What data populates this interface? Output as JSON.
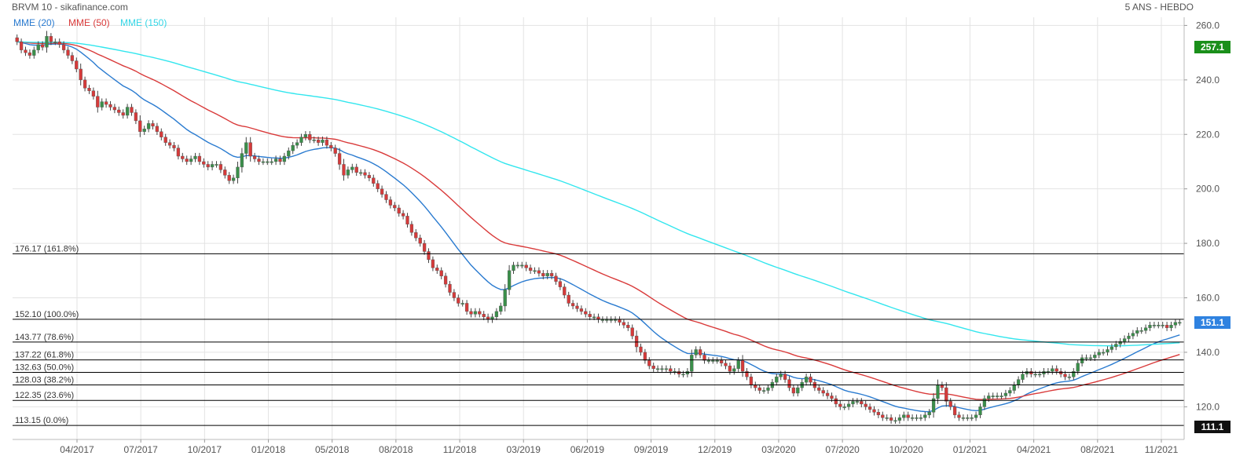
{
  "header": {
    "left_title": "BRVM 10 - sikafinance.com",
    "right_title": "5 ANS - HEBDO"
  },
  "legend": [
    {
      "label": "MME (20)",
      "color": "#2a7bd0"
    },
    {
      "label": "MME (50)",
      "color": "#d93a3a"
    },
    {
      "label": "MME (150)",
      "color": "#33e6ee"
    }
  ],
  "colors": {
    "up_candle": "#3a8f4a",
    "down_candle": "#d63a3a",
    "grid": "#e3e3e3",
    "fib_line": "#000000",
    "badge_last": "#1a8f1a",
    "badge_price": "#2f82e0",
    "badge_low": "#111111"
  },
  "badges": {
    "top": "257.1",
    "price": "151.1",
    "bottom": "111.1"
  },
  "chart_data": {
    "type": "candlestick",
    "title": "BRVM 10 - sikafinance.com",
    "period": "5 ANS - HEBDO",
    "ylim": [
      108,
      263
    ],
    "y_ticks": [
      "260.0",
      "240.0",
      "220.0",
      "200.0",
      "180.0",
      "160.0",
      "140.0",
      "120.0"
    ],
    "x_ticks": [
      "04/2017",
      "07/2017",
      "10/2017",
      "01/2018",
      "05/2018",
      "08/2018",
      "11/2018",
      "03/2019",
      "06/2019",
      "09/2019",
      "12/2019",
      "03/2020",
      "07/2020",
      "10/2020",
      "01/2021",
      "04/2021",
      "08/2021",
      "11/2021"
    ],
    "fibonacci": [
      {
        "value": 176.17,
        "label": "176.17  (161.8%)"
      },
      {
        "value": 152.1,
        "label": "152.10  (100.0%)"
      },
      {
        "value": 143.77,
        "label": "143.77  (78.6%)"
      },
      {
        "value": 137.22,
        "label": "137.22  (61.8%)"
      },
      {
        "value": 132.63,
        "label": "132.63  (50.0%)"
      },
      {
        "value": 128.03,
        "label": "128.03  (38.2%)"
      },
      {
        "value": 122.35,
        "label": "122.35  (23.6%)"
      },
      {
        "value": 113.15,
        "label": "113.15  (0.0%)"
      }
    ],
    "closes": [
      254.0,
      251.0,
      250.0,
      249.0,
      251.0,
      253.0,
      252.0,
      256.0,
      254.0,
      254.0,
      253.0,
      251.0,
      249.0,
      247.0,
      244.0,
      240.0,
      237.0,
      236.0,
      234.0,
      230.0,
      232.0,
      231.0,
      230.0,
      229.0,
      228.0,
      227.0,
      230.0,
      228.0,
      225.0,
      221.0,
      222.0,
      224.0,
      223.0,
      221.0,
      219.0,
      217.0,
      216.0,
      215.0,
      212.0,
      211.0,
      210.0,
      211.0,
      212.0,
      210.0,
      209.0,
      208.0,
      209.0,
      209.0,
      207.0,
      205.0,
      203.0,
      204.0,
      208.0,
      213.0,
      217.0,
      212.0,
      211.0,
      210.0,
      210.0,
      210.0,
      210.0,
      211.0,
      210.0,
      212.0,
      214.0,
      216.0,
      217.0,
      219.0,
      220.0,
      218.0,
      218.0,
      217.0,
      218.0,
      216.0,
      215.0,
      213.0,
      209.0,
      205.0,
      207.0,
      208.0,
      206.0,
      206.0,
      205.0,
      204.0,
      202.0,
      200.0,
      198.0,
      196.0,
      194.0,
      193.0,
      191.0,
      190.0,
      187.0,
      184.0,
      182.0,
      180.0,
      177.0,
      174.0,
      171.0,
      170.0,
      168.0,
      165.0,
      162.0,
      160.0,
      158.0,
      158.0,
      155.0,
      154.0,
      155.0,
      154.0,
      153.0,
      152.0,
      153.0,
      155.0,
      157.0,
      163.0,
      170.0,
      172.0,
      172.0,
      172.0,
      171.0,
      170.0,
      170.0,
      169.0,
      168.0,
      169.0,
      168.0,
      166.0,
      164.0,
      161.0,
      158.0,
      157.0,
      156.0,
      155.0,
      154.0,
      153.0,
      153.0,
      152.0,
      152.0,
      152.0,
      152.0,
      152.0,
      151.0,
      150.0,
      149.0,
      146.0,
      142.0,
      140.0,
      137.0,
      135.0,
      134.0,
      134.0,
      134.0,
      134.0,
      133.0,
      133.0,
      132.0,
      132.0,
      133.0,
      139.0,
      141.0,
      139.0,
      137.0,
      137.0,
      137.0,
      137.0,
      136.0,
      135.0,
      133.0,
      134.0,
      137.0,
      133.0,
      131.0,
      128.0,
      127.0,
      126.0,
      126.0,
      127.0,
      129.0,
      131.0,
      132.0,
      130.0,
      127.0,
      125.0,
      127.0,
      129.0,
      131.0,
      129.0,
      127.0,
      126.0,
      125.0,
      124.0,
      123.0,
      121.0,
      120.0,
      120.0,
      121.0,
      122.0,
      122.0,
      121.0,
      120.0,
      119.0,
      118.0,
      117.0,
      116.0,
      116.0,
      115.0,
      115.0,
      116.0,
      117.0,
      116.0,
      116.0,
      116.0,
      116.0,
      117.0,
      118.0,
      123.0,
      128.0,
      127.0,
      122.0,
      120.0,
      117.0,
      116.0,
      116.0,
      116.0,
      116.0,
      117.0,
      120.0,
      123.0,
      124.0,
      124.0,
      124.0,
      124.0,
      125.0,
      126.0,
      128.0,
      130.0,
      132.0,
      133.0,
      132.0,
      132.0,
      132.0,
      133.0,
      133.0,
      134.0,
      133.0,
      132.0,
      131.0,
      131.0,
      133.0,
      136.0,
      138.0,
      138.0,
      138.0,
      139.0,
      140.0,
      140.0,
      141.0,
      142.0,
      143.0,
      144.0,
      145.0,
      146.0,
      147.0,
      148.0,
      148.0,
      149.0,
      150.0,
      150.0,
      150.0,
      150.0,
      149.0,
      150.0,
      151.0,
      151.0
    ],
    "series": [
      {
        "name": "MME (20)",
        "period": 20
      },
      {
        "name": "MME (50)",
        "period": 50
      },
      {
        "name": "MME (150)",
        "period": 150
      }
    ],
    "last_price": 151.1,
    "grid": true
  }
}
